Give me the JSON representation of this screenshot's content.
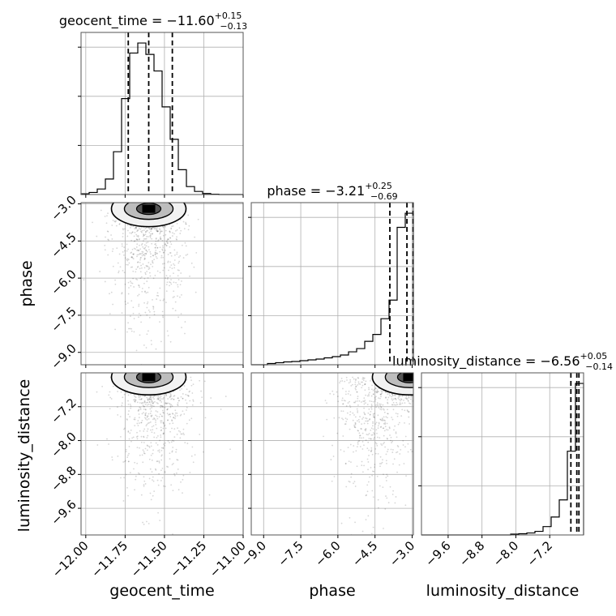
{
  "chart_data": {
    "type": "corner",
    "grid": true,
    "parameters": [
      "geocent_time",
      "phase",
      "luminosity_distance"
    ],
    "titles": [
      {
        "name": "geocent_time",
        "median": "−11.60",
        "plus": "+0.15",
        "minus": "−0.13"
      },
      {
        "name": "phase",
        "median": "−3.21",
        "plus": "+0.25",
        "minus": "−0.69"
      },
      {
        "name": "luminosity_distance",
        "median": "−6.56",
        "plus": "+0.05",
        "minus": "−0.14"
      }
    ],
    "axes": {
      "geocent_time": {
        "lim": [
          -12.03,
          -11.0
        ],
        "ticks": [
          -12.0,
          -11.75,
          -11.5,
          -11.25,
          -11.0
        ],
        "ticklabels": [
          "−12.00",
          "−11.75",
          "−11.50",
          "−11.25",
          "−11.00"
        ]
      },
      "phase": {
        "lim": [
          -9.5,
          -2.95
        ],
        "ticks": [
          -9.0,
          -7.5,
          -6.0,
          -4.5,
          -3.0
        ],
        "ticklabels": [
          "−9.0",
          "−7.5",
          "−6.0",
          "−4.5",
          "−3.0"
        ]
      },
      "luminosity_distance": {
        "lim": [
          -10.23,
          -6.4
        ],
        "ticks": [
          -9.6,
          -8.8,
          -8.0,
          -7.2
        ],
        "ticklabels": [
          "−9.6",
          "−8.8",
          "−8.0",
          "−7.2"
        ]
      }
    },
    "histograms": [
      {
        "parameter": "geocent_time",
        "edges": [
          -12.03,
          -11.9785,
          -11.927,
          -11.8755,
          -11.824,
          -11.7725,
          -11.721,
          -11.6695,
          -11.618,
          -11.5665,
          -11.515,
          -11.4635,
          -11.412,
          -11.3605,
          -11.309,
          -11.2575,
          -11.206,
          -11.1545,
          -11.103,
          -11.0515,
          -11.0
        ],
        "counts": [
          0.2,
          0.6,
          1.6,
          4.5,
          12.4,
          27.8,
          41.0,
          43.9,
          40.6,
          35.8,
          25.4,
          16.0,
          7.2,
          2.3,
          0.9,
          0.3,
          0.1,
          0,
          0,
          0
        ],
        "quantiles": [
          -11.73,
          -11.6,
          -11.45
        ]
      },
      {
        "parameter": "phase",
        "edges": [
          -9.5,
          -9.1725,
          -8.845,
          -8.5175,
          -8.19,
          -7.8625,
          -7.535,
          -7.2075,
          -6.88,
          -6.5525,
          -6.225,
          -5.8975,
          -5.57,
          -5.2425,
          -4.915,
          -4.5875,
          -4.26,
          -3.9325,
          -3.605,
          -3.2775,
          -2.95
        ],
        "counts": [
          0,
          0,
          0.3,
          0.5,
          0.7,
          0.8,
          1.0,
          1.2,
          1.4,
          1.7,
          2.0,
          2.4,
          3.2,
          4.0,
          5.8,
          7.5,
          11.4,
          16.0,
          34.0,
          37.5
        ],
        "quantiles": [
          -3.9,
          -3.21,
          -2.96
        ]
      },
      {
        "parameter": "luminosity_distance",
        "edges": [
          -10.23,
          -10.0385,
          -9.847,
          -9.6555,
          -9.464,
          -9.2725,
          -9.081,
          -8.8895,
          -8.698,
          -8.5065,
          -8.315,
          -8.1235,
          -7.932,
          -7.7405,
          -7.549,
          -7.3575,
          -7.166,
          -6.9745,
          -6.783,
          -6.5915,
          -6.4
        ],
        "counts": [
          0,
          0,
          0,
          0,
          0,
          0,
          0,
          0,
          0,
          0,
          0,
          0.2,
          0.3,
          0.5,
          0.9,
          2.1,
          4.5,
          8.8,
          21.0,
          38.0
        ],
        "quantiles": [
          -6.7,
          -6.56,
          -6.51
        ]
      }
    ],
    "scatter_2d": [
      {
        "x": "geocent_time",
        "y": "phase",
        "cloud_center": [
          -11.6,
          -4.0
        ],
        "peak": [
          -11.6,
          -3.2
        ]
      },
      {
        "x": "geocent_time",
        "y": "luminosity_distance",
        "cloud_center": [
          -11.55,
          -6.9
        ],
        "peak": [
          -11.6,
          -6.5
        ]
      },
      {
        "x": "phase",
        "y": "luminosity_distance",
        "cloud_center": [
          -4.5,
          -6.7
        ],
        "peak": [
          -3.1,
          -6.5
        ]
      }
    ]
  }
}
